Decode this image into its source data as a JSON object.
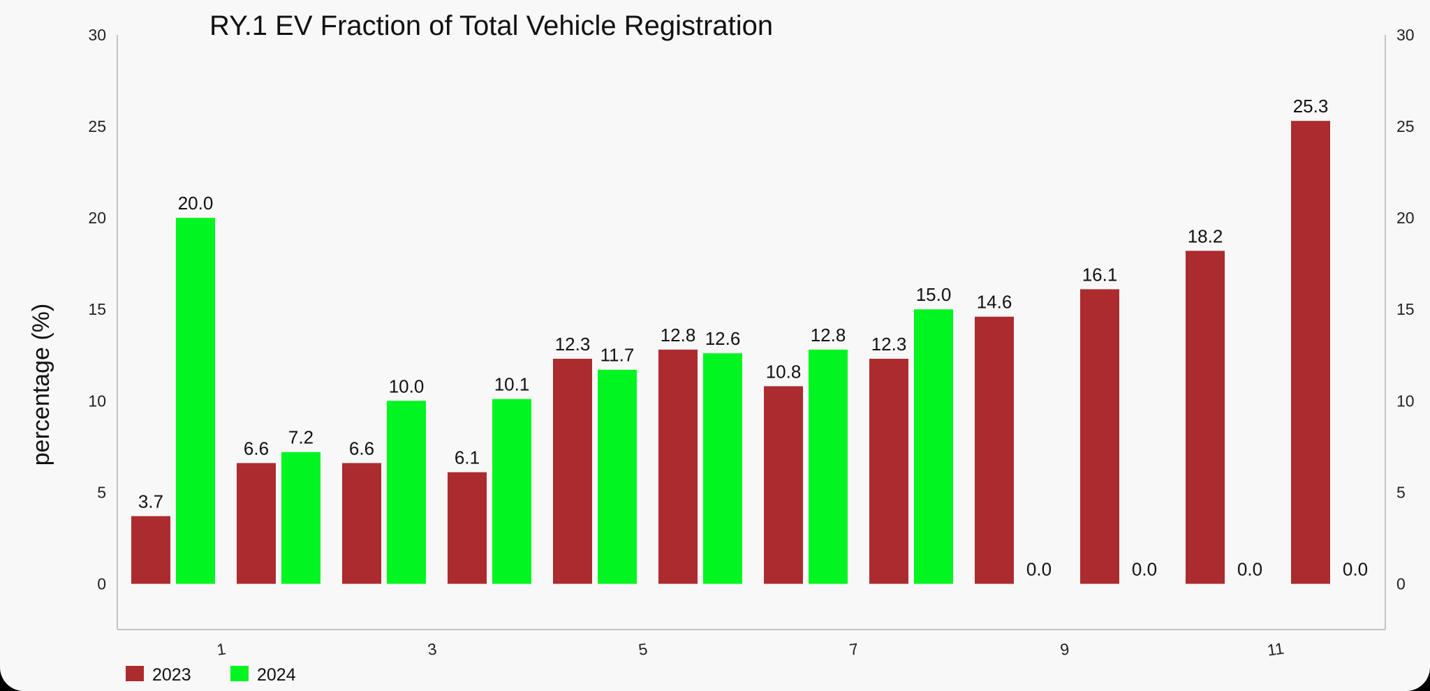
{
  "chart_data": {
    "type": "bar",
    "title": "RY.1 EV Fraction of Total Vehicle Registration",
    "ylabel": "percentage (%)",
    "xlabel": "",
    "categories": [
      1,
      2,
      3,
      4,
      5,
      6,
      7,
      8,
      9,
      10,
      11,
      12
    ],
    "x_tick_labels": [
      "1",
      "3",
      "5",
      "7",
      "9",
      "11"
    ],
    "y_ticks": [
      0,
      5,
      10,
      15,
      20,
      25,
      30
    ],
    "ylim": [
      -2.5,
      30
    ],
    "secondary_y_axis": true,
    "grid": false,
    "legend_position": "bottom-left",
    "series": [
      {
        "name": "2023",
        "color": "#ac2b2e",
        "values": [
          3.7,
          6.6,
          6.6,
          6.1,
          12.3,
          12.8,
          10.8,
          12.3,
          14.6,
          16.1,
          18.2,
          25.3
        ]
      },
      {
        "name": "2024",
        "color": "#00f521",
        "values": [
          20.0,
          7.2,
          10.0,
          10.1,
          11.7,
          12.6,
          12.8,
          15.0,
          0.0,
          0.0,
          0.0,
          0.0
        ]
      }
    ]
  }
}
